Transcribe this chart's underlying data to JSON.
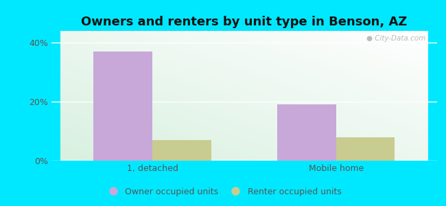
{
  "title": "Owners and renters by unit type in Benson, AZ",
  "categories": [
    "1, detached",
    "Mobile home"
  ],
  "owner_values": [
    37,
    19
  ],
  "renter_values": [
    7,
    8
  ],
  "owner_color": "#c8a8d8",
  "renter_color": "#c8cc90",
  "owner_label": "Owner occupied units",
  "renter_label": "Renter occupied units",
  "yticks": [
    0,
    20,
    40
  ],
  "ylim": [
    0,
    44
  ],
  "bar_width": 0.32,
  "background_outer": "#00e8ff",
  "background_inner_topleft": "#d8f0e0",
  "background_inner_topright": "#ffffff",
  "background_inner_bottomleft": "#d8f0e0",
  "background_inner_bottomright": "#e8f5e8",
  "title_fontsize": 13,
  "tick_fontsize": 9,
  "legend_fontsize": 9,
  "watermark_text": "City-Data.com"
}
